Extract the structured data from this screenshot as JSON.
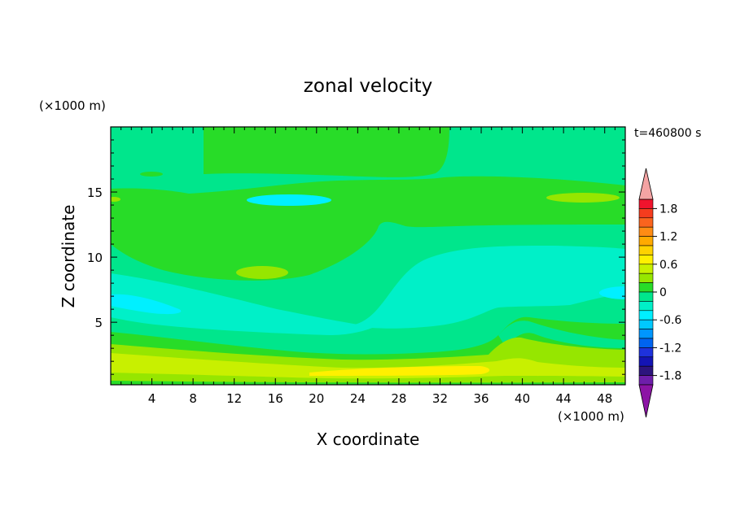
{
  "chart_data": {
    "type": "heatmap",
    "title": "zonal velocity",
    "xlabel": "X coordinate",
    "ylabel": "Z coordinate",
    "x_unit": "(×1000 m)",
    "y_unit": "(×1000 m)",
    "time_label": "t=460800 s",
    "xlim": [
      0,
      50
    ],
    "ylim": [
      0.2,
      20
    ],
    "x_ticks": [
      4,
      8,
      12,
      16,
      20,
      24,
      28,
      32,
      36,
      40,
      44,
      48
    ],
    "y_ticks": [
      5,
      10,
      15
    ],
    "colorbar": {
      "ticks": [
        1.8,
        1.2,
        0.6,
        0,
        -0.6,
        -1.2,
        -1.8
      ],
      "levels": [
        2.0,
        1.8,
        1.6,
        1.4,
        1.2,
        1.0,
        0.8,
        0.6,
        0.4,
        0.2,
        0.0,
        -0.2,
        -0.4,
        -0.6,
        -0.8,
        -1.0,
        -1.2,
        -1.4,
        -1.6,
        -1.8,
        -2.0
      ],
      "colors": [
        "#f0142d",
        "#f53c1e",
        "#fa641e",
        "#ff8c14",
        "#ffaa00",
        "#ffd200",
        "#fff000",
        "#c8f000",
        "#96e600",
        "#28dc28",
        "#00e68c",
        "#00f0c8",
        "#00f0ff",
        "#00c8ff",
        "#0096ff",
        "#0064f0",
        "#1e32dc",
        "#1414b4",
        "#2d147d",
        "#6e1eaa"
      ],
      "over_color": "#f4a3a3",
      "under_color": "#8c14a5"
    },
    "regions": [
      {
        "level": "0 to 0.2",
        "color": "#28dc28",
        "description": "upper layer band and left middle band"
      },
      {
        "level": "-0.2 to 0",
        "color": "#00e68c",
        "description": "background and lower shear band"
      },
      {
        "level": "-0.4 to -0.2",
        "color": "#00f0c8",
        "description": "right-center dome and lower-left layer"
      },
      {
        "level": "-0.6 to -0.4",
        "color": "#00f0ff",
        "description": "small patches at left and upper center"
      },
      {
        "level": "0.2 to 0.4",
        "color": "#96e600",
        "description": "near-surface band and small patches"
      },
      {
        "level": "0.4 to 0.6",
        "color": "#c8f000",
        "description": "near-surface jet"
      },
      {
        "level": "0.6 to 0.8",
        "color": "#fff000",
        "description": "near-surface jet core"
      }
    ]
  }
}
